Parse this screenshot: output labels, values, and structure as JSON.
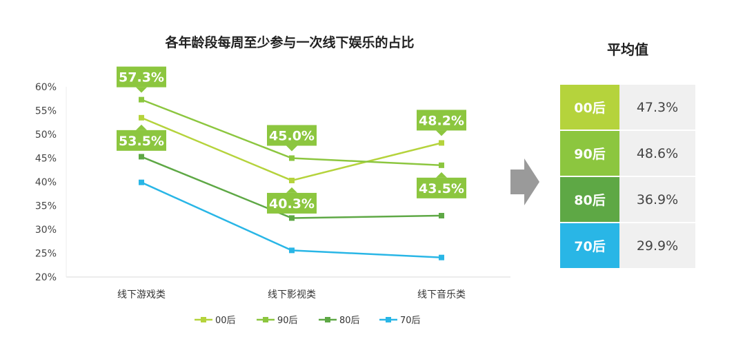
{
  "chart_data": {
    "type": "line",
    "title": "各年龄段每周至少参与一次线下娱乐的占比",
    "categories": [
      "线下游戏类",
      "线下影视类",
      "线下音乐类"
    ],
    "ylim": [
      20,
      60
    ],
    "yticks": [
      "20%",
      "25%",
      "30%",
      "35%",
      "40%",
      "45%",
      "50%",
      "55%",
      "60%"
    ],
    "ytick_values": [
      20,
      25,
      30,
      35,
      40,
      45,
      50,
      55,
      60
    ],
    "grid": false,
    "legend_position": "bottom",
    "series": [
      {
        "name": "00后",
        "values": [
          53.5,
          40.3,
          48.2
        ],
        "color": "#b5d33c"
      },
      {
        "name": "90后",
        "values": [
          57.3,
          45.0,
          43.5
        ],
        "color": "#8cc63f"
      },
      {
        "name": "80后",
        "values": [
          45.3,
          32.4,
          32.9
        ],
        "color": "#5ea845"
      },
      {
        "name": "70后",
        "values": [
          39.9,
          25.6,
          24.1
        ],
        "color": "#29b6e6"
      }
    ],
    "annotations": [
      {
        "series": 1,
        "index": 0,
        "text": "57.3%",
        "dir": "above"
      },
      {
        "series": 0,
        "index": 0,
        "text": "53.5%",
        "dir": "below"
      },
      {
        "series": 1,
        "index": 1,
        "text": "45.0%",
        "dir": "above"
      },
      {
        "series": 0,
        "index": 1,
        "text": "40.3%",
        "dir": "below"
      },
      {
        "series": 0,
        "index": 2,
        "text": "48.2%",
        "dir": "above"
      },
      {
        "series": 1,
        "index": 2,
        "text": "43.5%",
        "dir": "below"
      }
    ],
    "annotation_color": "#8cc63f"
  },
  "average_panel": {
    "title": "平均值",
    "rows": [
      {
        "gen": "00后",
        "value": "47.3%",
        "color": "#b5d33c"
      },
      {
        "gen": "90后",
        "value": "48.6%",
        "color": "#8cc63f"
      },
      {
        "gen": "80后",
        "value": "36.9%",
        "color": "#5ea845"
      },
      {
        "gen": "70后",
        "value": "29.9%",
        "color": "#29b6e6"
      }
    ]
  }
}
